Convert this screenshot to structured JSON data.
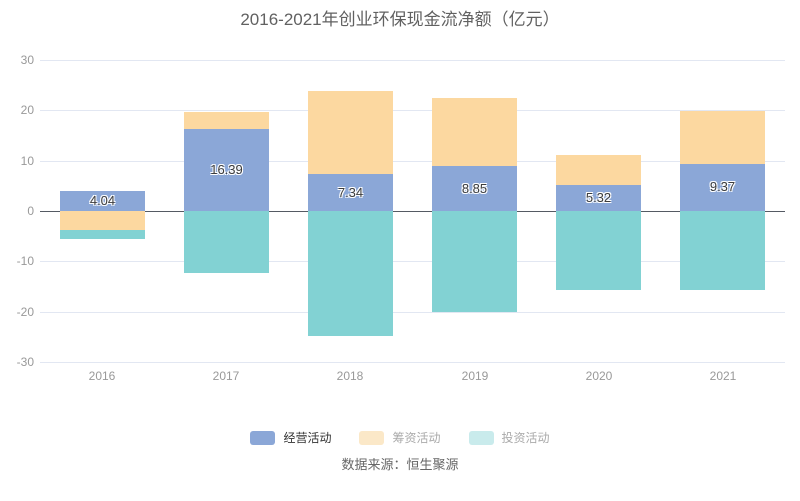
{
  "title": "2016-2021年创业环保现金流净额（亿元）",
  "source": "数据来源：恒生聚源",
  "chart_data": {
    "type": "bar",
    "stacked": true,
    "title": "2016-2021年创业环保现金流净额（亿元）",
    "categories": [
      "2016",
      "2017",
      "2018",
      "2019",
      "2020",
      "2021"
    ],
    "series": [
      {
        "id": "operating",
        "name": "经营活动",
        "color": "#8ba7d7",
        "values": [
          4.04,
          16.39,
          7.34,
          8.85,
          5.32,
          9.37
        ],
        "labels": [
          "4.04",
          "16.39",
          "7.34",
          "8.85",
          "5.32",
          "9.37"
        ]
      },
      {
        "id": "financing",
        "name": "筹资活动",
        "color": "#fcd8a0",
        "values": [
          -3.8,
          3.3,
          16.5,
          13.6,
          5.9,
          10.5
        ],
        "labels": null
      },
      {
        "id": "investing",
        "name": "投资活动",
        "color": "#82d2d3",
        "values": [
          -1.7,
          -12.4,
          -24.8,
          -20.1,
          -15.7,
          -15.7
        ],
        "labels": null
      }
    ],
    "xlabel": "",
    "ylabel": "",
    "ylim": [
      -30,
      30
    ],
    "yticks": [
      30,
      20,
      10,
      0,
      -10,
      -20,
      -30
    ],
    "grid": true,
    "legend_position": "bottom"
  },
  "legend": {
    "items": [
      {
        "id": "operating",
        "label": "经营活动",
        "swatch": "#8ba7d7",
        "text_color": "#333333"
      },
      {
        "id": "financing",
        "label": "筹资活动",
        "swatch": "#fbe8c8",
        "text_color": "#aaaaaa"
      },
      {
        "id": "investing",
        "label": "投资活动",
        "swatch": "#c9ebec",
        "text_color": "#aaaaaa"
      }
    ]
  },
  "colors": {
    "background": "#ffffff",
    "gridline": "#e2e7f2",
    "zero_line": "#555a63",
    "axis_label": "#999999",
    "title_text": "#616161",
    "source_text": "#666666",
    "bar_value_text": "#3c3c3c"
  }
}
